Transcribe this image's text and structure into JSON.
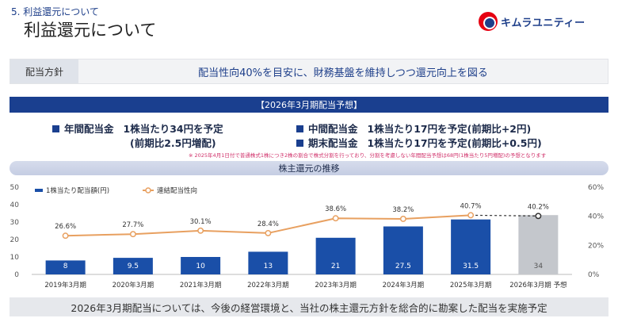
{
  "header": {
    "section": "5. 利益還元について",
    "title": "利益還元について",
    "brand": "キムラユニティー"
  },
  "policy": {
    "label": "配当方針",
    "text": "配当性向40%を目安に、財務基盤を維持しつつ還元向上を図る"
  },
  "forecast": {
    "banner": "【2026年3月期配当予想】",
    "annual_label": "年間配当金",
    "annual_value": "1株当たり34円を予定",
    "annual_sub": "(前期比2.5円増配)",
    "interim_label": "中間配当金",
    "interim_value": "1株当たり17円を予定(前期比+2円)",
    "yearend_label": "期末配当金",
    "yearend_value": "1株当たり17円を予定(前期比+0.5円)",
    "note": "※ 2025年4月1日付で普通株式1株につき2株の割合で株式分割を行っており、分割を考慮しない年間配当予想は68円(1株当たり5円増配)の予想となります"
  },
  "chart_band": "株主還元の推移",
  "footer": "2026年3月期配当については、今後の経営環境と、当社の株主還元方針を総合的に勘案した配当を実施予定",
  "colors": {
    "bar": "#1a4fa8",
    "bar_forecast": "#c4c7cc",
    "line": "#e8a060",
    "accent": "#1a3f8f"
  },
  "chart_data": {
    "type": "bar",
    "categories": [
      "2019年3月期",
      "2020年3月期",
      "2021年3月期",
      "2022年3月期",
      "2023年3月期",
      "2024年3月期",
      "2025年3月期",
      "2026年3月期 予想"
    ],
    "series": [
      {
        "name": "1株当たり配当額(円)",
        "type": "bar",
        "axis": "left",
        "values": [
          8,
          9.5,
          10,
          13,
          21,
          27.5,
          31.5,
          34
        ],
        "labels": [
          "8",
          "9.5",
          "10",
          "13",
          "21",
          "27.5",
          "31.5",
          "34"
        ],
        "forecast_index": 7
      },
      {
        "name": "連結配当性向",
        "type": "line",
        "axis": "right",
        "values": [
          26.6,
          27.7,
          30.1,
          28.4,
          38.6,
          38.2,
          40.7,
          40.2
        ],
        "labels": [
          "26.6%",
          "27.7%",
          "30.1%",
          "28.4%",
          "38.6%",
          "38.2%",
          "40.7%",
          "40.2%"
        ],
        "forecast_index": 7
      }
    ],
    "y_left": {
      "ticks": [
        0,
        10,
        20,
        30,
        40,
        50
      ],
      "ylim": [
        0,
        50
      ]
    },
    "y_right": {
      "ticks": [
        "0%",
        "20%",
        "40%",
        "60%"
      ],
      "ylim": [
        0,
        60
      ]
    },
    "legend_position": "top-left",
    "grid": false
  }
}
